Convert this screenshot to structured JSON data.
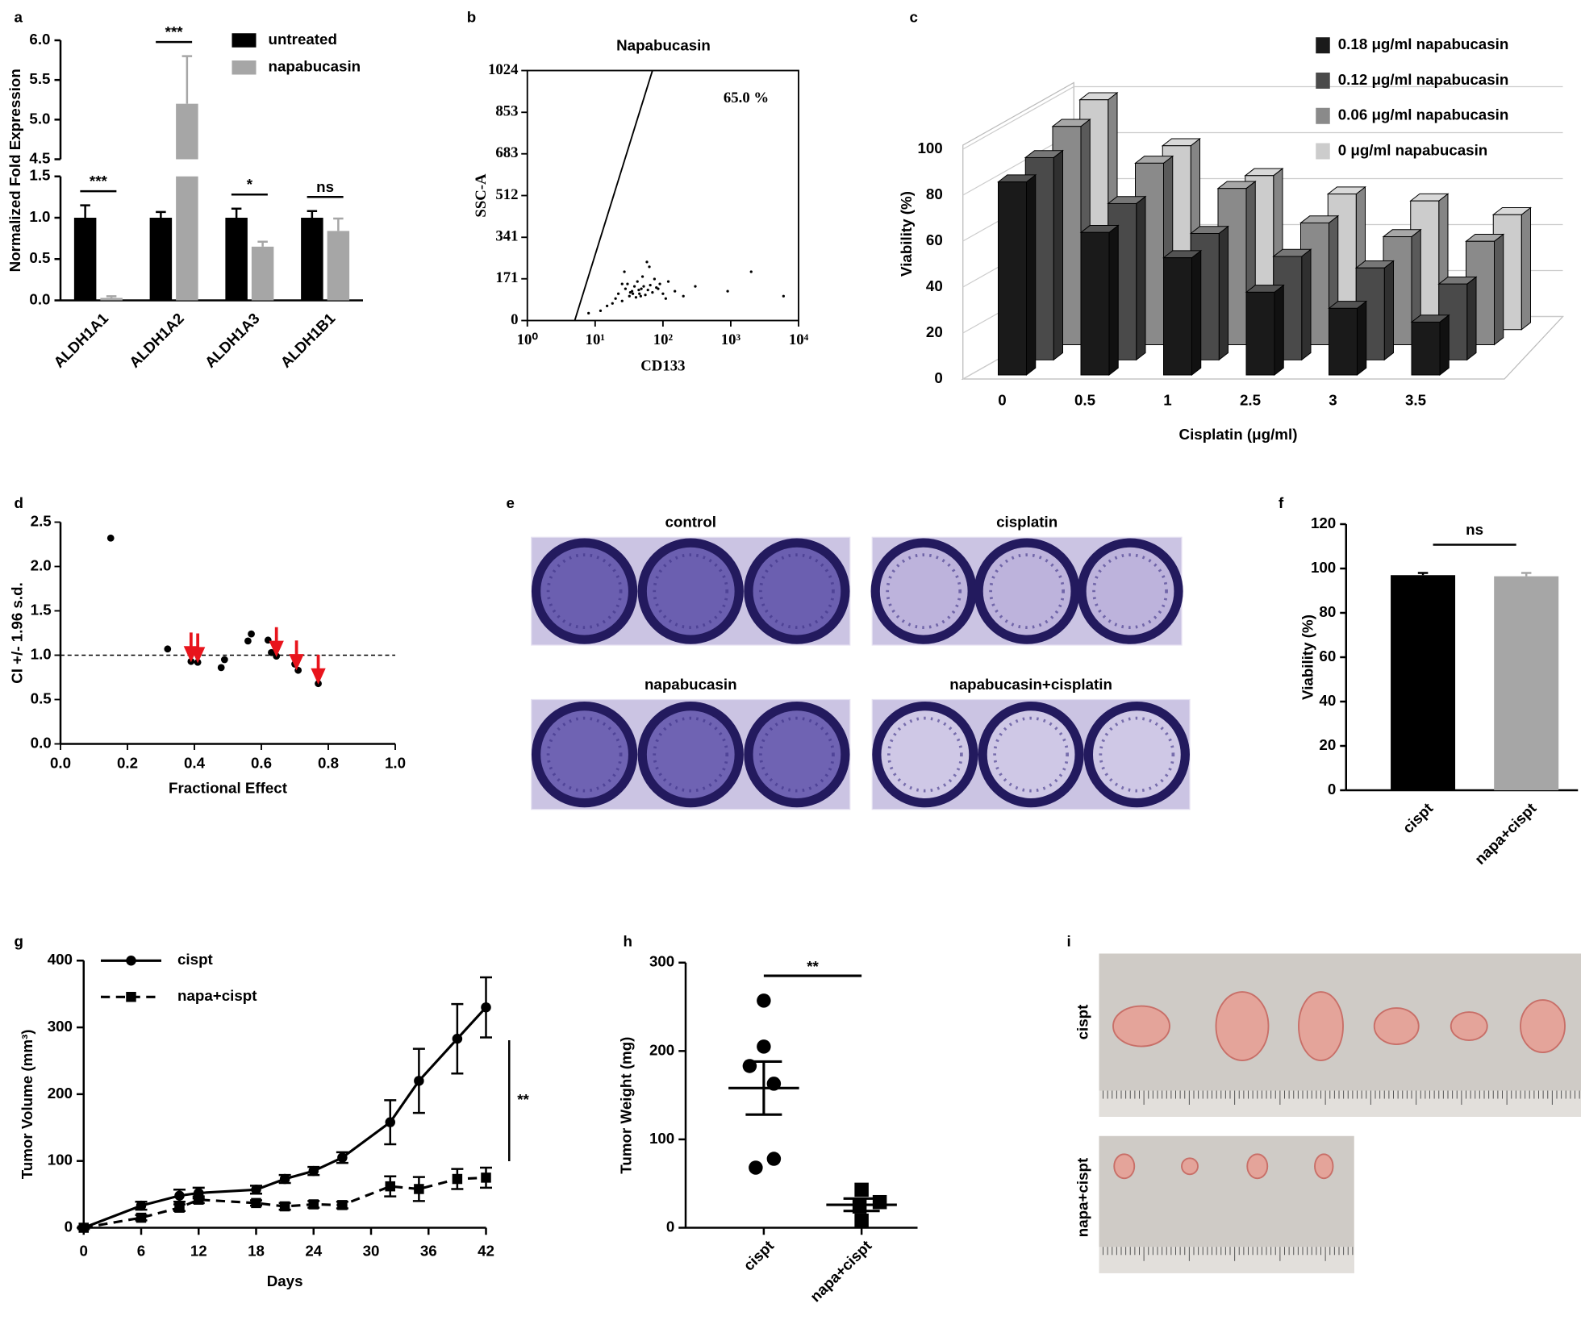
{
  "chart_data": [
    {
      "type": "bar",
      "panel": "a",
      "ylabel": "Normalized Fold Expression",
      "categories": [
        "ALDH1A1",
        "ALDH1A2",
        "ALDH1A3",
        "ALDH1B1"
      ],
      "series": [
        {
          "name": "untreated",
          "color": "#000000",
          "values": [
            1.0,
            1.0,
            1.0,
            1.0
          ],
          "errors": [
            0.15,
            0.07,
            0.11,
            0.08
          ]
        },
        {
          "name": "napabucasin",
          "color": "#a6a6a6",
          "values": [
            0.03,
            5.2,
            0.65,
            0.84
          ],
          "errors": [
            0.02,
            0.6,
            0.06,
            0.15
          ]
        }
      ],
      "significance": [
        "***",
        "***",
        "*",
        "ns"
      ],
      "ylim": [
        0,
        6
      ],
      "axis_break": [
        1.5,
        4.5
      ],
      "yticks": [
        {
          "value": 0,
          "label": "0.0"
        },
        {
          "value": 0.5,
          "label": "0.5"
        },
        {
          "value": 1,
          "label": "1.0"
        },
        {
          "value": 1.5,
          "label": "1.5"
        },
        {
          "value": 4.5,
          "label": "4.5"
        },
        {
          "value": 5,
          "label": "5.0"
        },
        {
          "value": 5.5,
          "label": "5.5"
        },
        {
          "value": 6,
          "label": "6.0"
        }
      ],
      "legend": "upper right"
    },
    {
      "type": "scatter",
      "panel": "b",
      "title": "Napabucasin",
      "xlabel": "CD133",
      "ylabel": "SSC-A",
      "annotation": "65.0 %",
      "xlog": true,
      "xlim": [
        1,
        10000
      ],
      "xticks": [
        {
          "value": 1,
          "label": "10⁰"
        },
        {
          "value": 10,
          "label": "10¹"
        },
        {
          "value": 100,
          "label": "10²"
        },
        {
          "value": 1000,
          "label": "10³"
        },
        {
          "value": 10000,
          "label": "10⁴"
        }
      ],
      "ylim": [
        0,
        1024
      ],
      "yticks": [
        0,
        171,
        341,
        512,
        683,
        853,
        1024
      ],
      "color": "#000000",
      "x": [
        12,
        15,
        20,
        22,
        25,
        28,
        30,
        32,
        35,
        38,
        40,
        42,
        45,
        48,
        50,
        55,
        60,
        65,
        70,
        75,
        80,
        90,
        100,
        120,
        150,
        200,
        300,
        8,
        18,
        27,
        33,
        44,
        52,
        63,
        85,
        110,
        25,
        36,
        47,
        58,
        900,
        2000,
        6000
      ],
      "y": [
        40,
        60,
        90,
        110,
        80,
        130,
        150,
        100,
        120,
        140,
        95,
        160,
        110,
        130,
        180,
        105,
        125,
        145,
        115,
        170,
        135,
        150,
        110,
        160,
        120,
        100,
        140,
        30,
        70,
        200,
        115,
        125,
        140,
        220,
        130,
        90,
        150,
        110,
        100,
        240,
        120,
        200,
        100
      ],
      "gate": {
        "x": [
          5,
          70
        ],
        "y": [
          0,
          1024
        ]
      }
    },
    {
      "type": "bar3d",
      "panel": "c",
      "xlabel": "Cisplatin (μg/ml)",
      "ylabel": "Viability (%)",
      "categories": [
        "0",
        "0.5",
        "1",
        "2.5",
        "3",
        "3.5"
      ],
      "series": [
        {
          "name": "0.18 μg/ml  napabucasin",
          "color": "#1a1a1a",
          "values": [
            84,
            62,
            51,
            36,
            29,
            23
          ]
        },
        {
          "name": "0.12 μg/ml  napabucasin",
          "color": "#4a4a4a",
          "values": [
            88,
            68,
            55,
            45,
            40,
            33
          ]
        },
        {
          "name": "0.06 μg/ml  napabucasin",
          "color": "#8a8a8a",
          "values": [
            95,
            79,
            68,
            53,
            47,
            45
          ]
        },
        {
          "name": "0 μg/ml napabucasin",
          "color": "#cccccc",
          "values": [
            100,
            80,
            67,
            59,
            56,
            50
          ]
        }
      ],
      "ylim": [
        0,
        100
      ],
      "yticks": [
        0,
        20,
        40,
        60,
        80,
        100
      ]
    },
    {
      "type": "scatter",
      "panel": "d",
      "xlabel": "Fractional Effect",
      "ylabel": "CI +/- 1.96 s.d.",
      "xlim": [
        0,
        1
      ],
      "xticks": [
        {
          "value": 0,
          "label": "0.0"
        },
        {
          "value": 0.2,
          "label": "0.2"
        },
        {
          "value": 0.4,
          "label": "0.4"
        },
        {
          "value": 0.6,
          "label": "0.6"
        },
        {
          "value": 0.8,
          "label": "0.8"
        },
        {
          "value": 1,
          "label": "1.0"
        }
      ],
      "ylim": [
        0,
        2.5
      ],
      "yticks": [
        {
          "value": 0,
          "label": "0.0"
        },
        {
          "value": 0.5,
          "label": "0.5"
        },
        {
          "value": 1,
          "label": "1.0"
        },
        {
          "value": 1.5,
          "label": "1.5"
        },
        {
          "value": 2,
          "label": "2.0"
        },
        {
          "value": 2.5,
          "label": "2.5"
        }
      ],
      "color": "#000000",
      "x": [
        0.15,
        0.32,
        0.39,
        0.41,
        0.48,
        0.49,
        0.56,
        0.57,
        0.62,
        0.63,
        0.645,
        0.7,
        0.71,
        0.77
      ],
      "y": [
        2.32,
        1.07,
        0.93,
        0.92,
        0.86,
        0.95,
        1.16,
        1.24,
        1.17,
        1.03,
        0.99,
        0.9,
        0.83,
        0.68
      ],
      "reference_line": 1,
      "arrows": {
        "color": "#e8141c",
        "x": [
          0.39,
          0.41,
          0.645,
          0.705,
          0.77
        ],
        "y": [
          0.96,
          0.95,
          1.02,
          0.87,
          0.71
        ]
      }
    },
    {
      "type": "image",
      "panel": "e",
      "labels": [
        "control",
        "cisplatin",
        "napabucasin",
        "napabucasin+cisplatin"
      ]
    },
    {
      "type": "bar",
      "panel": "f",
      "ylabel": "Viability (%)",
      "categories": [
        "cispt",
        "napa+cispt"
      ],
      "values": [
        97,
        96.5
      ],
      "errors": [
        1,
        1.5
      ],
      "colors": [
        "#000000",
        "#a6a6a6"
      ],
      "significance": "ns",
      "ylim": [
        0,
        120
      ],
      "yticks": [
        0,
        20,
        40,
        60,
        80,
        100,
        120
      ]
    },
    {
      "type": "line",
      "panel": "g",
      "xlabel": "Days",
      "ylabel": "Tumor Volume (mm³)",
      "annotation": "**",
      "x": [
        0,
        6,
        10,
        12,
        18,
        21,
        24,
        27,
        32,
        35,
        39,
        42
      ],
      "series": [
        {
          "name": "cispt",
          "color": "#000000",
          "marker": "circle",
          "linestyle": "solid",
          "values": [
            0,
            33,
            48,
            52,
            57,
            73,
            85,
            105,
            158,
            220,
            283,
            330
          ],
          "errors": [
            2,
            6,
            9,
            8,
            6,
            6,
            6,
            8,
            33,
            48,
            52,
            45
          ]
        },
        {
          "name": "napa+cispt",
          "color": "#000000",
          "marker": "square",
          "linestyle": "dashed",
          "values": [
            0,
            15,
            30,
            42,
            37,
            32,
            35,
            34,
            62,
            58,
            73,
            75
          ],
          "errors": [
            2,
            4,
            5,
            5,
            4,
            5,
            5,
            5,
            15,
            18,
            15,
            15
          ]
        }
      ],
      "xlim": [
        0,
        42
      ],
      "xticks": [
        0,
        6,
        12,
        18,
        24,
        30,
        36,
        42
      ],
      "ylim": [
        0,
        400
      ],
      "yticks": [
        0,
        100,
        200,
        300,
        400
      ]
    },
    {
      "type": "dot",
      "panel": "h",
      "ylabel": "Tumor Weight (mg)",
      "categories": [
        "cispt",
        "napa+cispt"
      ],
      "markers": [
        "circle",
        "square"
      ],
      "values": [
        [
          257,
          205,
          183,
          163,
          78,
          68
        ],
        [
          43,
          29,
          24,
          8
        ]
      ],
      "means": [
        158,
        26
      ],
      "sems": [
        30,
        7
      ],
      "significance": "**",
      "ylim": [
        0,
        300
      ],
      "yticks": [
        0,
        100,
        200,
        300
      ]
    },
    {
      "type": "image",
      "panel": "i",
      "labels": [
        "cispt",
        "napa+cispt"
      ]
    }
  ]
}
